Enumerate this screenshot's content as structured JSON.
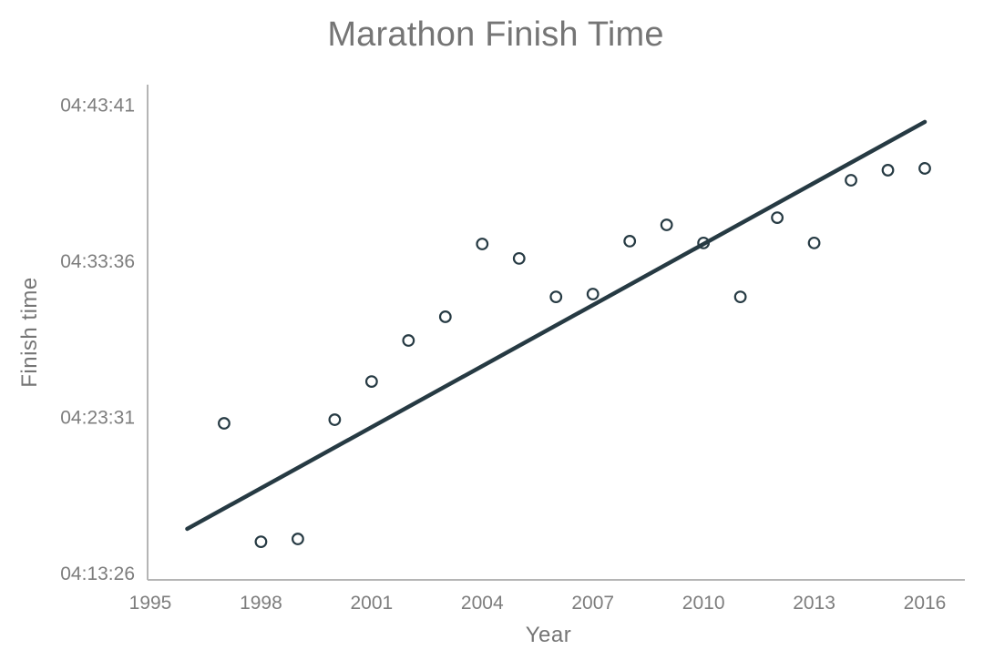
{
  "title": "Marathon Finish Time",
  "colors": {
    "accent": "#263a43",
    "axis_line": "#b5b5b5",
    "title_text": "#757575",
    "tick_text": "#7d7d7d",
    "background": "#ffffff"
  },
  "chart_data": {
    "type": "scatter",
    "title": "Marathon Finish Time",
    "xlabel": "Year",
    "ylabel": "Finish time",
    "x_ticks": [
      1995,
      1998,
      2001,
      2004,
      2007,
      2010,
      2013,
      2016
    ],
    "y_ticks": [
      "04:43:41",
      "04:33:36",
      "04:23:31",
      "04:13:26"
    ],
    "x_range": [
      1995,
      2017.1
    ],
    "y_range": [
      "04:13:01",
      "04:45:01"
    ],
    "grid": false,
    "legend": "none",
    "marker": "open-circle",
    "points": [
      {
        "year": 1997,
        "time": "04:23:08"
      },
      {
        "year": 1998,
        "time": "04:15:29"
      },
      {
        "year": 1999,
        "time": "04:15:40"
      },
      {
        "year": 2000,
        "time": "04:23:22"
      },
      {
        "year": 2001,
        "time": "04:25:50"
      },
      {
        "year": 2002,
        "time": "04:28:29"
      },
      {
        "year": 2003,
        "time": "04:30:01"
      },
      {
        "year": 2004,
        "time": "04:34:43"
      },
      {
        "year": 2005,
        "time": "04:33:47"
      },
      {
        "year": 2006,
        "time": "04:31:18"
      },
      {
        "year": 2007,
        "time": "04:31:29"
      },
      {
        "year": 2008,
        "time": "04:34:54"
      },
      {
        "year": 2009,
        "time": "04:35:57"
      },
      {
        "year": 2010,
        "time": "04:34:47"
      },
      {
        "year": 2011,
        "time": "04:31:18"
      },
      {
        "year": 2012,
        "time": "04:36:25"
      },
      {
        "year": 2013,
        "time": "04:34:47"
      },
      {
        "year": 2014,
        "time": "04:38:50"
      },
      {
        "year": 2015,
        "time": "04:39:29"
      },
      {
        "year": 2016,
        "time": "04:39:36"
      }
    ],
    "trendline": {
      "start": {
        "year": 1996.0,
        "time": "04:16:19"
      },
      "end": {
        "year": 2016.0,
        "time": "04:42:36"
      }
    }
  }
}
